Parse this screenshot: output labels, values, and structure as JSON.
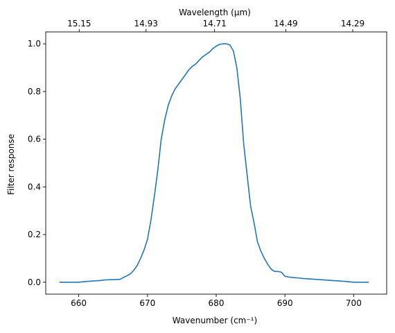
{
  "chart_data": {
    "type": "line",
    "xlabel": "Wavenumber (cm⁻¹)",
    "ylabel": "Filter response",
    "top_xlabel": "Wavelength (μm)",
    "xlim": [
      655.2,
      704.8
    ],
    "ylim": [
      -0.05,
      1.05
    ],
    "x_ticks": [
      660,
      670,
      680,
      690,
      700
    ],
    "x_tick_labels": [
      "660",
      "670",
      "680",
      "690",
      "700"
    ],
    "y_ticks": [
      0.0,
      0.2,
      0.4,
      0.6,
      0.8,
      1.0
    ],
    "y_tick_labels": [
      "0.0",
      "0.2",
      "0.4",
      "0.6",
      "0.8",
      "1.0"
    ],
    "top_ticks": [
      660.07,
      669.79,
      679.76,
      690.13,
      699.86
    ],
    "top_tick_labels": [
      "15.15",
      "14.93",
      "14.71",
      "14.49",
      "14.29"
    ],
    "grid": false,
    "color": "#1f77b4",
    "series": [
      {
        "x": [
          657.2,
          660.0,
          661.0,
          662.0,
          663.0,
          664.0,
          665.0,
          666.0,
          666.5,
          667.0,
          667.5,
          668.0,
          668.5,
          669.0,
          669.5,
          670.0,
          670.5,
          671.0,
          671.5,
          672.0,
          672.5,
          673.0,
          673.5,
          674.0,
          674.5,
          675.0,
          675.5,
          676.0,
          676.5,
          677.0,
          677.5,
          678.0,
          678.5,
          679.0,
          679.5,
          680.0,
          680.5,
          681.0,
          681.5,
          682.0,
          682.5,
          683.0,
          683.5,
          684.0,
          684.5,
          685.0,
          685.5,
          686.0,
          686.5,
          687.0,
          687.5,
          688.0,
          688.5,
          689.0,
          689.5,
          690.0,
          690.5,
          691.0,
          691.5,
          692.0,
          692.5,
          693.0,
          694.0,
          695.0,
          696.0,
          697.0,
          698.0,
          699.0,
          700.0,
          701.0,
          702.2
        ],
        "y": [
          0.0,
          0.0,
          0.003,
          0.005,
          0.007,
          0.01,
          0.011,
          0.012,
          0.02,
          0.027,
          0.035,
          0.05,
          0.07,
          0.1,
          0.135,
          0.18,
          0.26,
          0.36,
          0.47,
          0.6,
          0.68,
          0.74,
          0.78,
          0.81,
          0.83,
          0.85,
          0.87,
          0.89,
          0.905,
          0.915,
          0.93,
          0.945,
          0.955,
          0.965,
          0.98,
          0.99,
          0.998,
          1.0,
          1.0,
          0.995,
          0.97,
          0.9,
          0.77,
          0.58,
          0.45,
          0.32,
          0.25,
          0.17,
          0.13,
          0.1,
          0.075,
          0.055,
          0.045,
          0.045,
          0.042,
          0.025,
          0.022,
          0.02,
          0.019,
          0.018,
          0.016,
          0.015,
          0.013,
          0.011,
          0.009,
          0.007,
          0.005,
          0.003,
          0.0,
          0.0,
          0.0
        ]
      }
    ]
  }
}
